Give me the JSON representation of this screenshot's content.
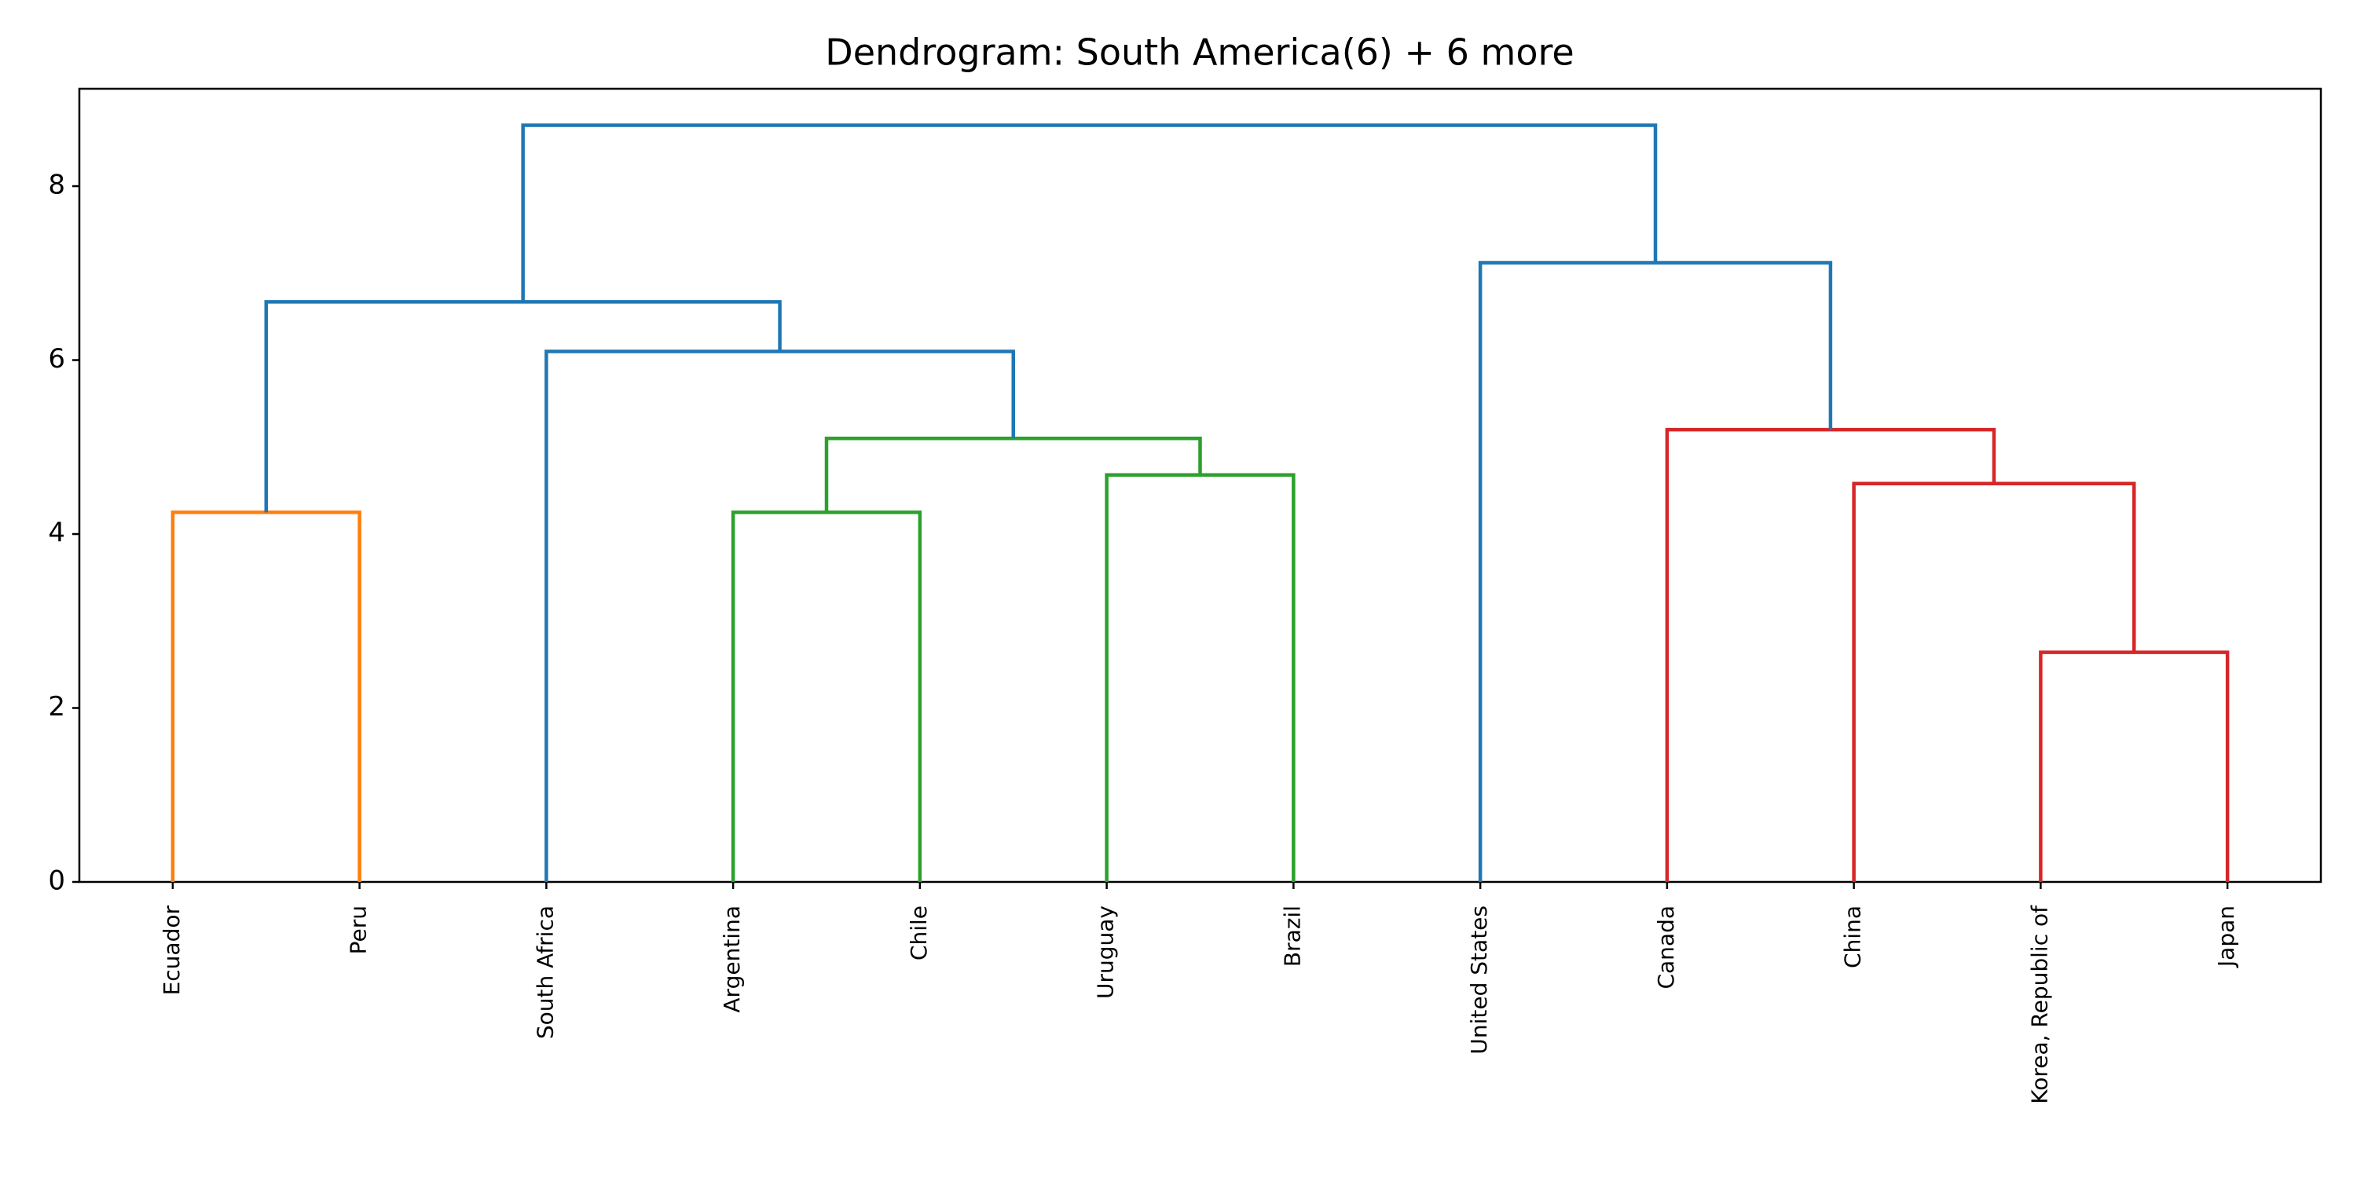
{
  "chart_data": {
    "type": "dendrogram",
    "title": "Dendrogram: South America(6) + 6 more",
    "leaves": [
      "Ecuador",
      "Peru",
      "South Africa",
      "Argentina",
      "Chile",
      "Uruguay",
      "Brazil",
      "United States",
      "Canada",
      "China",
      "Korea, Republic of",
      "Japan"
    ],
    "merges": [
      {
        "children": [
          0,
          1
        ],
        "height": 4.25,
        "color": "#ff7f0e"
      },
      {
        "children": [
          3,
          4
        ],
        "height": 4.25,
        "color": "#2ca02c"
      },
      {
        "children": [
          5,
          6
        ],
        "height": 4.68,
        "color": "#2ca02c"
      },
      {
        "children": [
          13,
          14
        ],
        "height": 5.1,
        "color": "#2ca02c"
      },
      {
        "children": [
          2,
          15
        ],
        "height": 6.1,
        "color": "#1f77b4"
      },
      {
        "children": [
          12,
          16
        ],
        "height": 6.67,
        "color": "#1f77b4"
      },
      {
        "children": [
          10,
          11
        ],
        "height": 2.64,
        "color": "#d62728"
      },
      {
        "children": [
          9,
          18
        ],
        "height": 4.58,
        "color": "#d62728"
      },
      {
        "children": [
          8,
          19
        ],
        "height": 5.2,
        "color": "#d62728"
      },
      {
        "children": [
          7,
          20
        ],
        "height": 7.12,
        "color": "#1f77b4"
      },
      {
        "children": [
          17,
          21
        ],
        "height": 8.7,
        "color": "#1f77b4"
      }
    ],
    "ylim": [
      0,
      9.12
    ],
    "yticks": [
      0,
      2,
      4,
      6,
      8
    ]
  }
}
